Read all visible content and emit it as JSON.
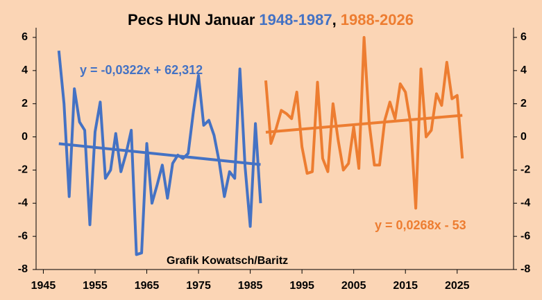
{
  "chart_data": {
    "type": "line",
    "title": "Pecs HUN Januar",
    "title_separator": ",",
    "series": [
      {
        "name": "1948-1987",
        "color": "#4472c4",
        "x": [
          1948,
          1949,
          1950,
          1951,
          1952,
          1953,
          1954,
          1955,
          1956,
          1957,
          1958,
          1959,
          1960,
          1961,
          1962,
          1963,
          1964,
          1965,
          1966,
          1967,
          1968,
          1969,
          1970,
          1971,
          1972,
          1973,
          1974,
          1975,
          1976,
          1977,
          1978,
          1979,
          1980,
          1981,
          1982,
          1983,
          1984,
          1985,
          1986,
          1987
        ],
        "values": [
          5.2,
          2.0,
          -3.6,
          2.9,
          0.9,
          0.4,
          -5.3,
          0.3,
          2.1,
          -2.5,
          -2.0,
          0.2,
          -2.1,
          -1.0,
          0.4,
          -7.1,
          -7.0,
          -0.4,
          -4.0,
          -2.9,
          -1.7,
          -3.7,
          -1.6,
          -1.1,
          -1.3,
          -1.0,
          1.5,
          3.7,
          0.7,
          1.0,
          0.1,
          -1.5,
          -3.6,
          -2.1,
          -2.5,
          4.1,
          -1.8,
          -5.4,
          0.8,
          -4.0
        ],
        "trend": {
          "x": [
            1948,
            1987
          ],
          "values": [
            -0.41,
            -1.67
          ],
          "label": "y = -0,0322x + 62,312"
        }
      },
      {
        "name": "1988-2026",
        "color": "#ed7d31",
        "x": [
          1988,
          1989,
          1990,
          1991,
          1992,
          1993,
          1994,
          1995,
          1996,
          1997,
          1998,
          1999,
          2000,
          2001,
          2002,
          2003,
          2004,
          2005,
          2006,
          2007,
          2008,
          2009,
          2010,
          2011,
          2012,
          2013,
          2014,
          2015,
          2016,
          2017,
          2018,
          2019,
          2020,
          2021,
          2022,
          2023,
          2024,
          2025,
          2026
        ],
        "values": [
          3.4,
          -0.4,
          0.5,
          1.6,
          1.4,
          1.1,
          2.7,
          -0.6,
          -2.2,
          -2.1,
          3.3,
          -1.3,
          -2.1,
          2.0,
          -0.2,
          -2.0,
          -1.6,
          0.6,
          -1.9,
          6.0,
          0.8,
          -1.7,
          -1.7,
          1.0,
          2.1,
          1.1,
          3.2,
          2.7,
          0.8,
          -4.3,
          4.1,
          0.0,
          0.4,
          2.6,
          1.9,
          4.5,
          2.3,
          2.5,
          -1.3
        ],
        "trend": {
          "x": [
            1988,
            2026
          ],
          "values": [
            0.28,
            1.3
          ],
          "label": "y = 0,0268x - 53"
        }
      }
    ],
    "annotation": "Grafik Kowatsch/Baritz",
    "xlim": [
      1943.6,
      2035.9
    ],
    "xticks": [
      1945,
      1955,
      1965,
      1975,
      1985,
      1995,
      2005,
      2015,
      2025
    ],
    "ylim": [
      -8,
      6
    ],
    "yticks": [
      -8,
      -6,
      -4,
      -2,
      0,
      2,
      4,
      6
    ],
    "y2lim": [
      -8,
      6
    ],
    "y2ticks": [
      -8,
      -6,
      -4,
      -2,
      0,
      2,
      4,
      6
    ],
    "grid": false
  }
}
